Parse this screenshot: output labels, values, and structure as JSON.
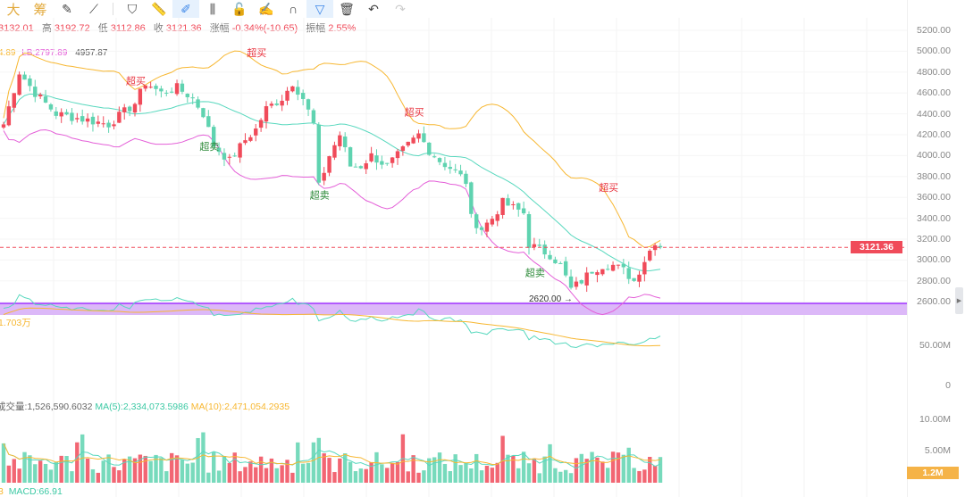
{
  "toolbar": {
    "items": [
      {
        "name": "chip-big",
        "label": "大"
      },
      {
        "name": "chip-distribution",
        "label": "筹"
      },
      {
        "name": "note-icon",
        "label": "✎"
      },
      {
        "name": "line-tool-icon",
        "label": "⟋"
      },
      {
        "name": "bookmark-icon",
        "label": "⛉"
      },
      {
        "name": "ruler-icon",
        "label": "📏"
      },
      {
        "name": "brush-icon",
        "label": "✐",
        "active": true
      },
      {
        "name": "candles-icon",
        "label": "⫼"
      },
      {
        "name": "lock-icon",
        "label": "🔓"
      },
      {
        "name": "edit-icon",
        "label": "✍"
      },
      {
        "name": "magnet-icon",
        "label": "∩"
      },
      {
        "name": "filter-icon",
        "label": "▽",
        "active": true
      },
      {
        "name": "trash-icon",
        "label": "🗑"
      },
      {
        "name": "undo-icon",
        "label": "↶"
      },
      {
        "name": "redo-icon",
        "label": "↷",
        "disabled": true
      }
    ]
  },
  "info": {
    "open": "3132.01",
    "high_label": "高",
    "high": "3192.72",
    "low_label": "低",
    "low": "3112.86",
    "close_label": "收",
    "close": "3121.36",
    "change_label": "涨幅",
    "change": "-0.34%(-10.65)",
    "amp_label": "振幅",
    "amp": "2.55%"
  },
  "bands": {
    "mid": "4.89",
    "lower": "LB:2797.89",
    "hover": "4957.87"
  },
  "axis": {
    "price_ticks": [
      "5200.00",
      "5000.00",
      "4800.00",
      "4600.00",
      "4400.00",
      "4200.00",
      "4000.00",
      "3800.00",
      "3600.00",
      "3400.00",
      "3200.00",
      "3000.00",
      "2800.00",
      "2600.00"
    ],
    "current_price": "3121.36",
    "ind_ticks": [
      "50.00M",
      "0"
    ],
    "vol_ticks": [
      "10.00M",
      "5.00M"
    ],
    "vol_current": "1.2M"
  },
  "indicator": {
    "label": "1.703万"
  },
  "volume": {
    "label": "成交量:1,526,590.6032",
    "ma5": "MA(5):2,334,073.5986",
    "ma10": "MA(10):2,471,054.2935"
  },
  "macd": {
    "label": "MACD:66.91",
    "prefix": "3"
  },
  "low_marker": "2620.00",
  "colors": {
    "up": "#f04b5a",
    "down": "#5fd3b0",
    "upper": "#f7b731",
    "lower": "#e45fd8",
    "mid": "#58d8be",
    "band": "#a033ff"
  },
  "chart_data": {
    "type": "candlestick",
    "ylim": [
      2600,
      5200
    ],
    "close_keypoints": [
      [
        0,
        4300
      ],
      [
        3,
        4800
      ],
      [
        6,
        4600
      ],
      [
        10,
        4400
      ],
      [
        15,
        4350
      ],
      [
        20,
        4300
      ],
      [
        25,
        4500
      ],
      [
        27,
        4700
      ],
      [
        30,
        4600
      ],
      [
        33,
        4650
      ],
      [
        36,
        4550
      ],
      [
        38,
        4400
      ],
      [
        40,
        4100
      ],
      [
        43,
        3950
      ],
      [
        46,
        4150
      ],
      [
        48,
        4250
      ],
      [
        50,
        4450
      ],
      [
        53,
        4550
      ],
      [
        55,
        4700
      ],
      [
        57,
        4550
      ],
      [
        59,
        4300
      ],
      [
        60,
        3700
      ],
      [
        62,
        4000
      ],
      [
        64,
        4200
      ],
      [
        66,
        3900
      ],
      [
        68,
        3900
      ],
      [
        70,
        4000
      ],
      [
        73,
        3900
      ],
      [
        76,
        4050
      ],
      [
        79,
        4200
      ],
      [
        81,
        4050
      ],
      [
        83,
        3950
      ],
      [
        86,
        3850
      ],
      [
        88,
        3750
      ],
      [
        89,
        3400
      ],
      [
        91,
        3300
      ],
      [
        93,
        3400
      ],
      [
        95,
        3550
      ],
      [
        97,
        3500
      ],
      [
        99,
        3450
      ],
      [
        100,
        3150
      ],
      [
        102,
        3100
      ],
      [
        104,
        3050
      ],
      [
        106,
        2950
      ],
      [
        108,
        2720
      ],
      [
        110,
        2800
      ],
      [
        112,
        2900
      ],
      [
        114,
        2950
      ],
      [
        116,
        2950
      ],
      [
        118,
        2900
      ],
      [
        120,
        2800
      ],
      [
        122,
        3000
      ],
      [
        124,
        3180
      ],
      [
        125,
        3121.36
      ]
    ],
    "signals": [
      {
        "text": "超买",
        "index": 25,
        "type": "buy"
      },
      {
        "text": "超卖",
        "index": 39,
        "type": "sell"
      },
      {
        "text": "超买",
        "index": 48,
        "type": "buy"
      },
      {
        "text": "超卖",
        "index": 60,
        "type": "sell"
      },
      {
        "text": "超买",
        "index": 78,
        "type": "buy"
      },
      {
        "text": "超卖",
        "index": 101,
        "type": "sell"
      },
      {
        "text": "超买",
        "index": 115,
        "type": "buy"
      }
    ]
  }
}
